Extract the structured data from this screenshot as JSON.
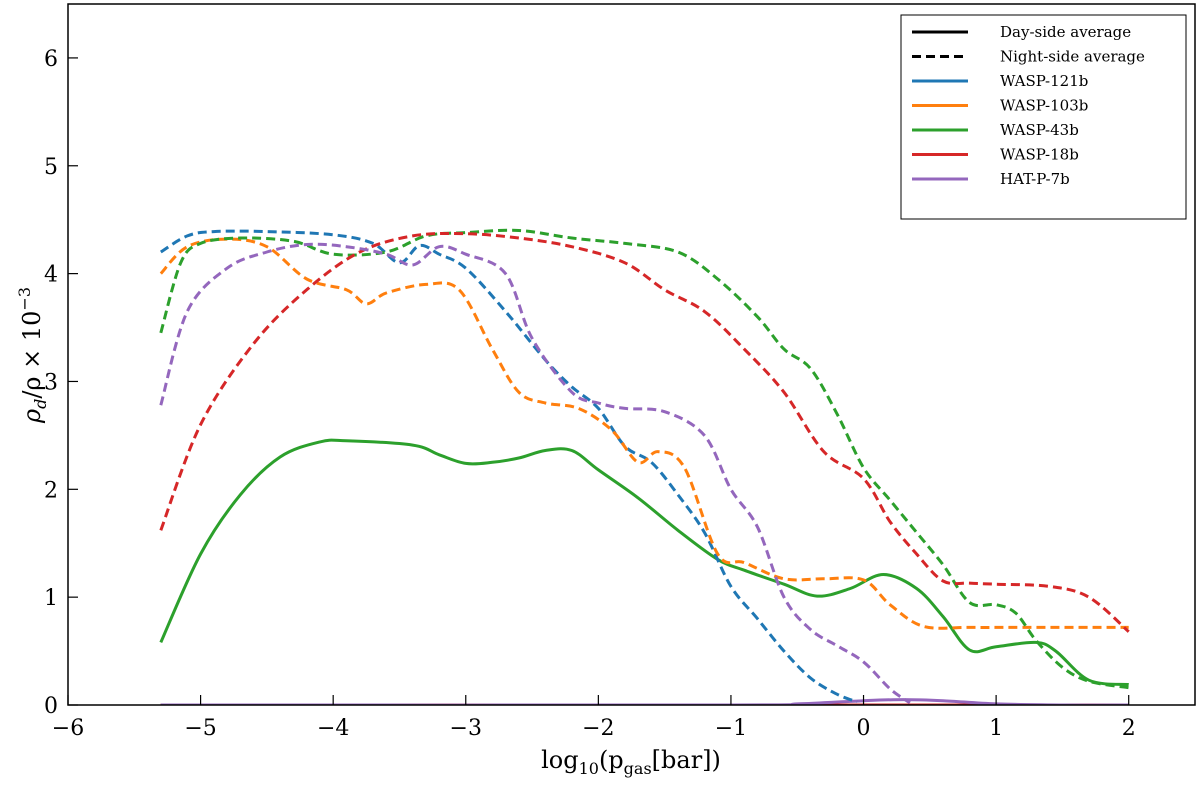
{
  "chart_data": {
    "type": "line",
    "xlabel": "log₁₀(p_gas[bar])",
    "xlabel_parts": {
      "pre": "log",
      "sub1": "10",
      "mid": "(p",
      "sub2": "gas",
      "post": "[bar])"
    },
    "ylabel": "ρ_d/ρ × 10⁻³",
    "ylabel_parts": {
      "rho1": "ρ",
      "sub": "d",
      "mid": "/ρ × 10",
      "sup": "−3"
    },
    "xlim": [
      -6,
      2.5
    ],
    "ylim": [
      0,
      6.5
    ],
    "xticks": [
      -6,
      -5,
      -4,
      -3,
      -2,
      -1,
      0,
      1,
      2
    ],
    "xtick_labels": [
      "−6",
      "−5",
      "−4",
      "−3",
      "−2",
      "−1",
      "0",
      "1",
      "2"
    ],
    "yticks": [
      0,
      1,
      2,
      3,
      4,
      5,
      6
    ],
    "ytick_labels": [
      "0",
      "1",
      "2",
      "3",
      "4",
      "5",
      "6"
    ],
    "grid": false,
    "legend": {
      "placement": "top-right",
      "style_entries": [
        {
          "label": "Day-side average",
          "style": "solid"
        },
        {
          "label": "Night-side average",
          "style": "dashed"
        }
      ],
      "planet_entries": [
        {
          "label": "WASP-121b",
          "color": "#1f77b4"
        },
        {
          "label": "WASP-103b",
          "color": "#ff7f0e"
        },
        {
          "label": "WASP-43b",
          "color": "#2ca02c"
        },
        {
          "label": "WASP-18b",
          "color": "#d62728"
        },
        {
          "label": "HAT-P-7b",
          "color": "#9467bd"
        }
      ]
    },
    "series": [
      {
        "name": "WASP-121b",
        "side": "day",
        "color": "#1f77b4",
        "style": "solid",
        "x": [
          -5.3,
          2.0
        ],
        "y": [
          0.0,
          0.0
        ]
      },
      {
        "name": "WASP-103b",
        "side": "day",
        "color": "#ff7f0e",
        "style": "solid",
        "x": [
          -5.3,
          2.0
        ],
        "y": [
          0.0,
          0.0
        ]
      },
      {
        "name": "WASP-18b",
        "side": "day",
        "color": "#d62728",
        "style": "solid",
        "x": [
          -5.3,
          2.0
        ],
        "y": [
          0.0,
          0.0
        ]
      },
      {
        "name": "HAT-P-7b",
        "side": "day",
        "color": "#9467bd",
        "style": "solid",
        "x": [
          -5.3,
          -1.0,
          -0.5,
          0.0,
          0.3,
          0.6,
          1.0,
          1.5,
          2.0
        ],
        "y": [
          0.0,
          0.0,
          0.01,
          0.04,
          0.05,
          0.04,
          0.01,
          0.0,
          0.0
        ]
      },
      {
        "name": "WASP-43b",
        "side": "day",
        "color": "#2ca02c",
        "style": "solid",
        "x": [
          -5.3,
          -5.0,
          -4.7,
          -4.4,
          -4.1,
          -3.9,
          -3.4,
          -3.2,
          -3.0,
          -2.8,
          -2.6,
          -2.4,
          -2.2,
          -2.0,
          -1.7,
          -1.4,
          -1.1,
          -0.9,
          -0.6,
          -0.35,
          -0.1,
          0.15,
          0.4,
          0.6,
          0.8,
          1.0,
          1.3,
          1.45,
          1.7,
          2.0
        ],
        "y": [
          0.58,
          1.4,
          1.95,
          2.3,
          2.44,
          2.45,
          2.41,
          2.32,
          2.24,
          2.25,
          2.29,
          2.36,
          2.36,
          2.18,
          1.92,
          1.62,
          1.35,
          1.25,
          1.12,
          1.01,
          1.08,
          1.21,
          1.08,
          0.82,
          0.51,
          0.54,
          0.58,
          0.5,
          0.23,
          0.19
        ]
      },
      {
        "name": "WASP-121b",
        "side": "night",
        "color": "#1f77b4",
        "style": "dashed",
        "x": [
          -5.3,
          -5.1,
          -4.9,
          -4.5,
          -4.0,
          -3.7,
          -3.5,
          -3.35,
          -3.2,
          -3.0,
          -2.7,
          -2.4,
          -2.2,
          -2.0,
          -1.8,
          -1.6,
          -1.4,
          -1.2,
          -1.0,
          -0.8,
          -0.6,
          -0.4,
          -0.2,
          -0.05
        ],
        "y": [
          4.2,
          4.35,
          4.39,
          4.39,
          4.36,
          4.28,
          4.1,
          4.26,
          4.18,
          4.05,
          3.65,
          3.2,
          2.95,
          2.75,
          2.4,
          2.25,
          1.95,
          1.6,
          1.1,
          0.8,
          0.5,
          0.25,
          0.1,
          0.03
        ]
      },
      {
        "name": "WASP-103b",
        "side": "night",
        "color": "#ff7f0e",
        "style": "dashed",
        "x": [
          -5.3,
          -5.1,
          -4.8,
          -4.5,
          -4.2,
          -3.9,
          -3.75,
          -3.6,
          -3.3,
          -3.05,
          -2.8,
          -2.6,
          -2.4,
          -2.15,
          -1.9,
          -1.7,
          -1.55,
          -1.35,
          -1.1,
          -0.9,
          -0.6,
          -0.3,
          0.0,
          0.2,
          0.45,
          0.8,
          1.2,
          2.0
        ],
        "y": [
          4.0,
          4.25,
          4.32,
          4.25,
          3.95,
          3.85,
          3.72,
          3.82,
          3.9,
          3.85,
          3.3,
          2.9,
          2.8,
          2.75,
          2.55,
          2.25,
          2.35,
          2.2,
          1.4,
          1.32,
          1.17,
          1.17,
          1.16,
          0.93,
          0.73,
          0.72,
          0.72,
          0.72
        ]
      },
      {
        "name": "WASP-43b",
        "side": "night",
        "color": "#2ca02c",
        "style": "dashed",
        "x": [
          -5.3,
          -5.15,
          -5.0,
          -4.7,
          -4.3,
          -4.0,
          -3.6,
          -3.3,
          -3.0,
          -2.6,
          -2.2,
          -1.8,
          -1.4,
          -1.1,
          -0.8,
          -0.6,
          -0.4,
          -0.2,
          0.0,
          0.2,
          0.4,
          0.6,
          0.8,
          1.0,
          1.15,
          1.3,
          1.5,
          1.7,
          2.0
        ],
        "y": [
          3.45,
          4.1,
          4.28,
          4.33,
          4.3,
          4.18,
          4.2,
          4.35,
          4.38,
          4.4,
          4.33,
          4.28,
          4.2,
          3.95,
          3.6,
          3.3,
          3.12,
          2.7,
          2.2,
          1.9,
          1.6,
          1.3,
          0.95,
          0.93,
          0.85,
          0.6,
          0.35,
          0.22,
          0.16
        ]
      },
      {
        "name": "WASP-18b",
        "side": "night",
        "color": "#d62728",
        "style": "dashed",
        "x": [
          -5.3,
          -5.0,
          -4.6,
          -4.2,
          -3.8,
          -3.4,
          -3.0,
          -2.6,
          -2.2,
          -1.8,
          -1.5,
          -1.2,
          -0.9,
          -0.6,
          -0.3,
          0.0,
          0.2,
          0.4,
          0.6,
          0.8,
          1.0,
          1.4,
          1.7,
          2.0
        ],
        "y": [
          1.62,
          2.6,
          3.35,
          3.85,
          4.2,
          4.35,
          4.37,
          4.33,
          4.25,
          4.1,
          3.85,
          3.65,
          3.3,
          2.9,
          2.35,
          2.1,
          1.7,
          1.4,
          1.15,
          1.13,
          1.12,
          1.1,
          1.0,
          0.68
        ]
      },
      {
        "name": "HAT-P-7b",
        "side": "night",
        "color": "#9467bd",
        "style": "dashed",
        "x": [
          -5.3,
          -5.1,
          -4.8,
          -4.5,
          -4.2,
          -3.9,
          -3.6,
          -3.4,
          -3.2,
          -3.0,
          -2.7,
          -2.5,
          -2.2,
          -2.0,
          -1.8,
          -1.5,
          -1.2,
          -1.0,
          -0.8,
          -0.6,
          -0.4,
          -0.2,
          0.0,
          0.2,
          0.35
        ],
        "y": [
          2.78,
          3.65,
          4.05,
          4.2,
          4.27,
          4.25,
          4.18,
          4.08,
          4.25,
          4.18,
          4.0,
          3.4,
          2.9,
          2.8,
          2.75,
          2.72,
          2.5,
          2.0,
          1.65,
          1.0,
          0.7,
          0.55,
          0.4,
          0.15,
          0.02
        ]
      }
    ]
  }
}
